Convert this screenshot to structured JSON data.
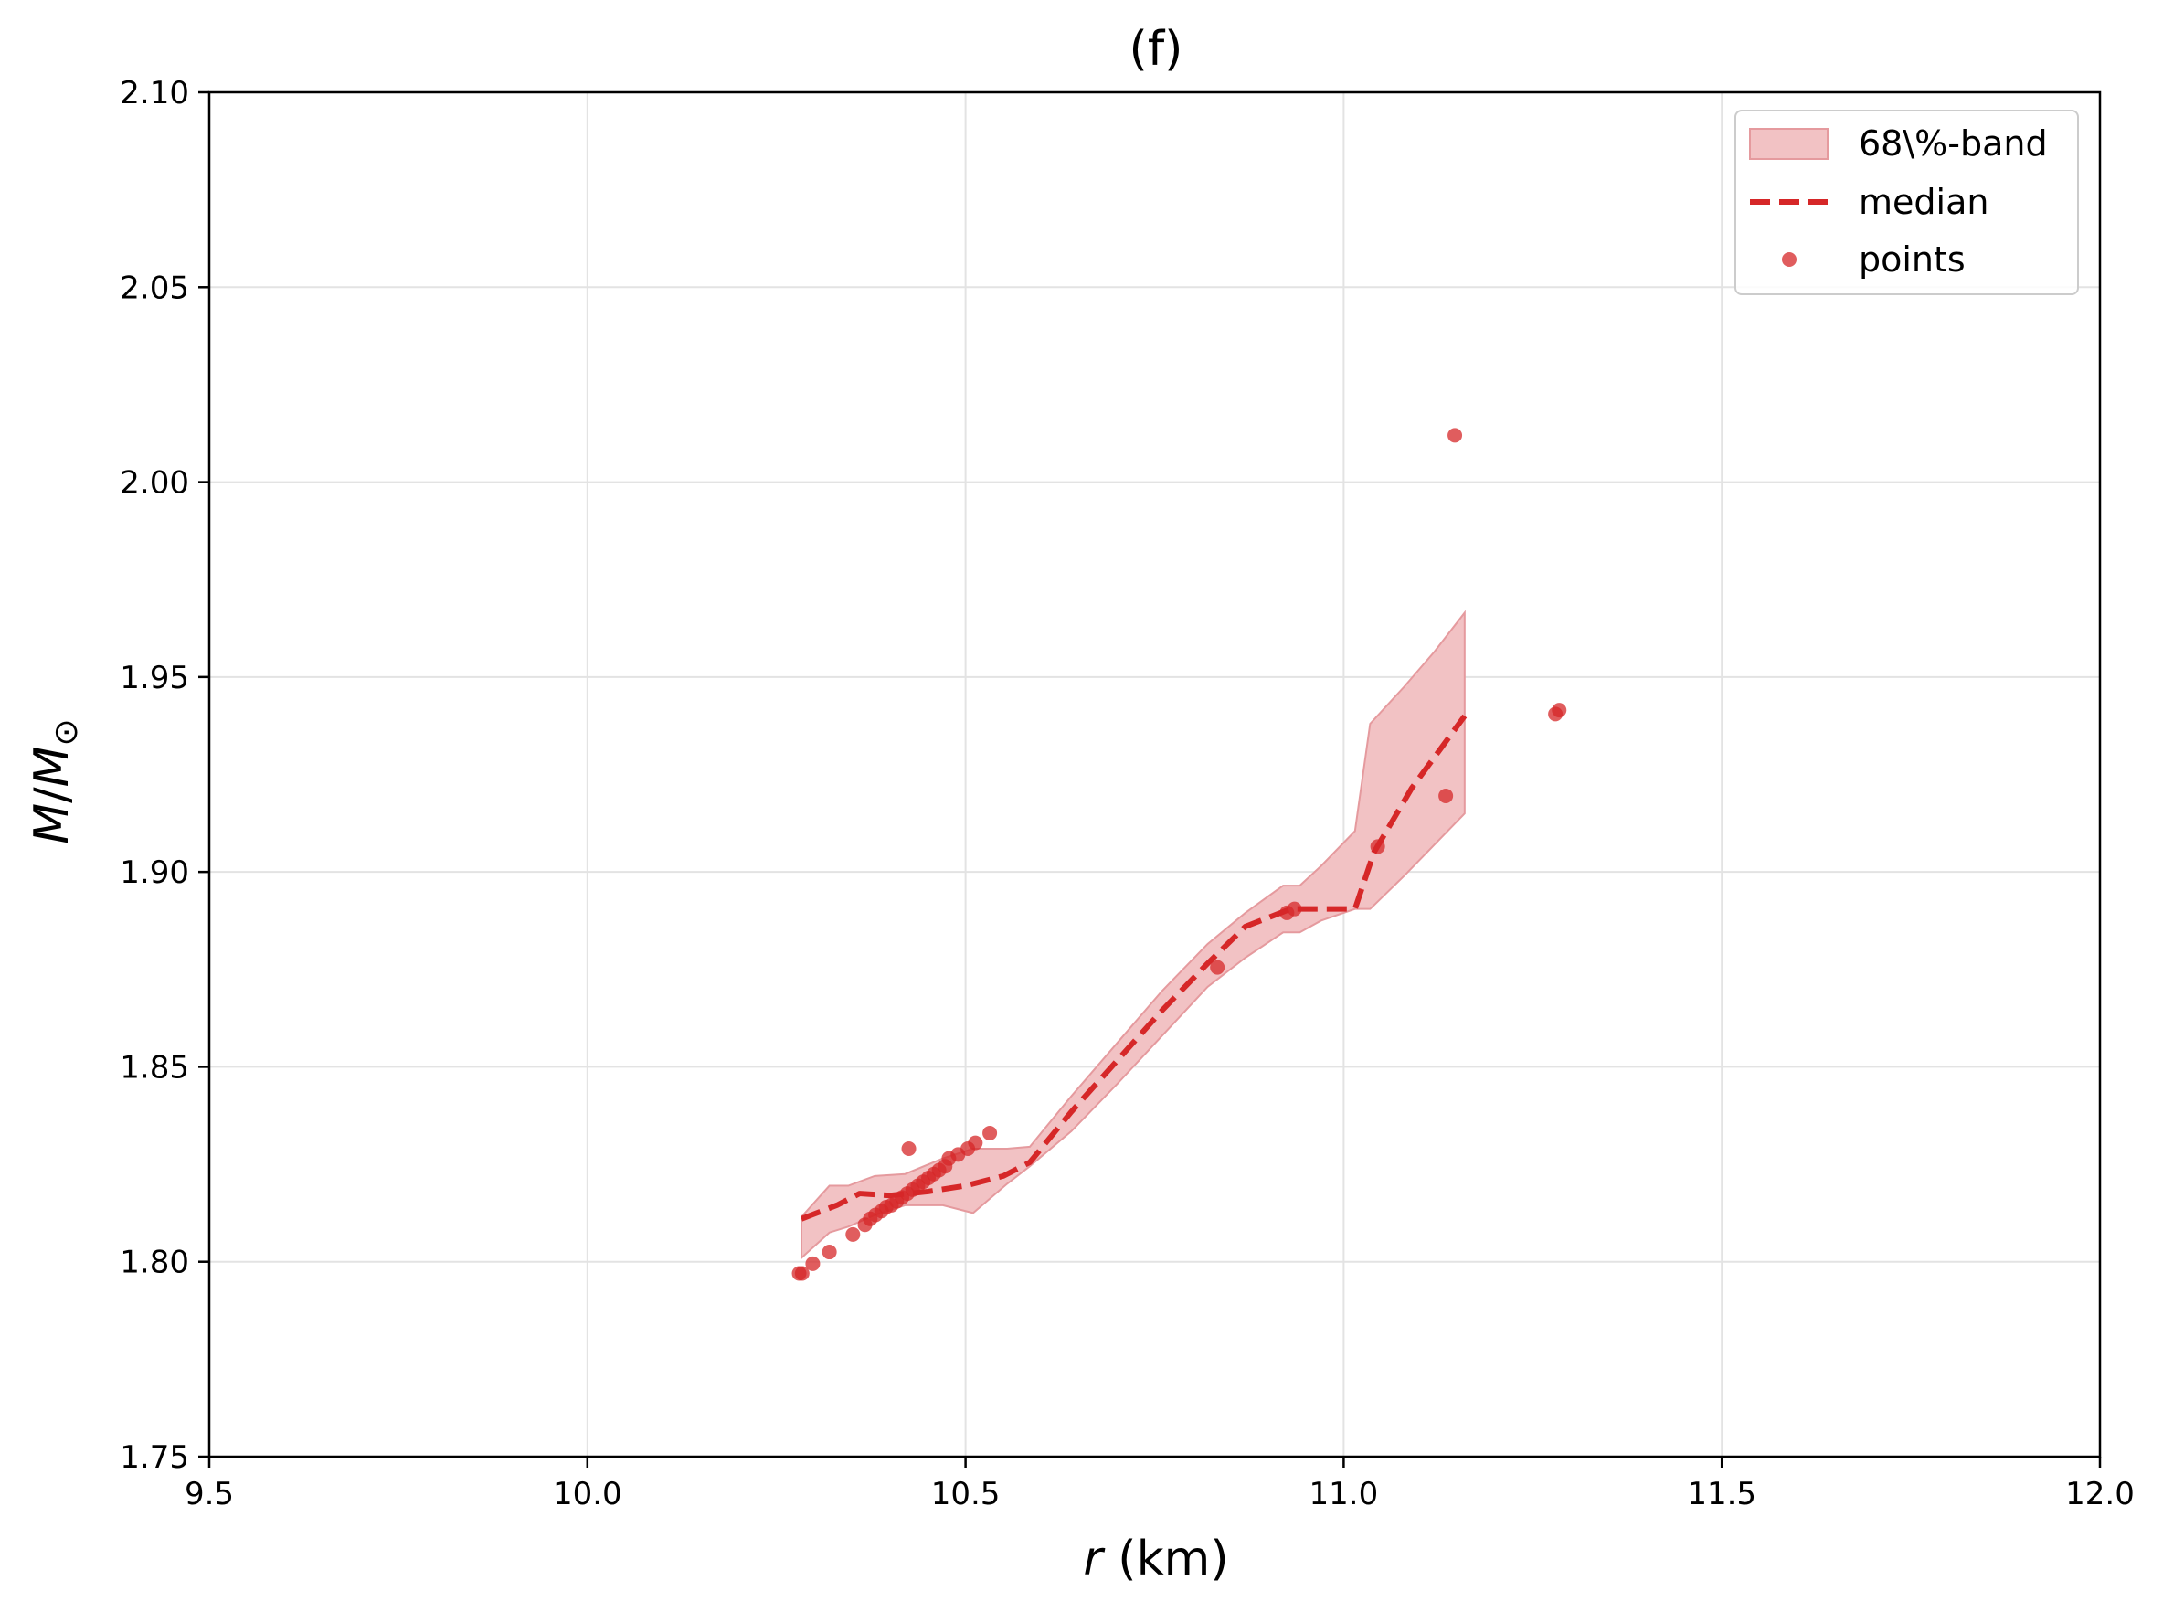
{
  "chart_data": {
    "type": "line",
    "title": "(f)",
    "xlabel": {
      "var": "r",
      "rest": " (km)"
    },
    "ylabel": {
      "var1": "M",
      "sep": "/",
      "var2": "M",
      "sub": "⊙"
    },
    "xlim": [
      9.5,
      12.0
    ],
    "ylim": [
      1.75,
      2.1
    ],
    "xticks": [
      9.5,
      10.0,
      10.5,
      11.0,
      11.5,
      12.0
    ],
    "xtick_labels": [
      "9.5",
      "10.0",
      "10.5",
      "11.0",
      "11.5",
      "12.0"
    ],
    "yticks": [
      1.75,
      1.8,
      1.85,
      1.9,
      1.95,
      2.0,
      2.05,
      2.1
    ],
    "ytick_labels": [
      "1.75",
      "1.80",
      "1.85",
      "1.90",
      "1.95",
      "2.00",
      "2.05",
      "2.10"
    ],
    "grid": true,
    "legend_position": "top-right",
    "colors": {
      "band_fill": "#f2c2c4",
      "band_edge": "#e59a9e",
      "median": "#d62728",
      "points": "#d62728"
    },
    "band": {
      "name": "68\\%-band",
      "x": [
        10.283,
        10.32,
        10.345,
        10.38,
        10.42,
        10.47,
        10.51,
        10.555,
        10.585,
        10.64,
        10.7,
        10.76,
        10.82,
        10.87,
        10.92,
        10.942,
        10.97,
        11.015,
        11.035,
        11.08,
        11.12,
        11.16
      ],
      "upper": [
        1.8115,
        1.8195,
        1.8195,
        1.822,
        1.8225,
        1.8265,
        1.829,
        1.829,
        1.8295,
        1.8425,
        1.856,
        1.8695,
        1.8815,
        1.8895,
        1.8965,
        1.8965,
        1.9015,
        1.9105,
        1.938,
        1.9475,
        1.9565,
        1.9665
      ],
      "lower": [
        1.801,
        1.8075,
        1.809,
        1.812,
        1.8145,
        1.8145,
        1.8125,
        1.82,
        1.8245,
        1.8335,
        1.8455,
        1.858,
        1.8705,
        1.878,
        1.8845,
        1.8845,
        1.8875,
        1.8905,
        1.8905,
        1.899,
        1.907,
        1.915
      ]
    },
    "median": {
      "name": "median",
      "x": [
        10.283,
        10.33,
        10.36,
        10.4,
        10.45,
        10.5,
        10.55,
        10.585,
        10.64,
        10.7,
        10.76,
        10.82,
        10.87,
        10.93,
        10.96,
        11.015,
        11.04,
        11.09,
        11.16
      ],
      "y": [
        1.811,
        1.8145,
        1.8175,
        1.817,
        1.818,
        1.8195,
        1.822,
        1.8255,
        1.8385,
        1.8515,
        1.8645,
        1.8765,
        1.886,
        1.8905,
        1.8905,
        1.8905,
        1.905,
        1.9215,
        1.94
      ]
    },
    "points": {
      "name": "points",
      "x": [
        10.28,
        10.284,
        10.298,
        10.32,
        10.351,
        10.367,
        10.374,
        10.381,
        10.389,
        10.395,
        10.402,
        10.409,
        10.416,
        10.423,
        10.43,
        10.437,
        10.444,
        10.451,
        10.458,
        10.465,
        10.473,
        10.478,
        10.425,
        10.49,
        10.503,
        10.513,
        10.532,
        10.833,
        10.925,
        10.935,
        11.045,
        11.135,
        11.147,
        11.28,
        11.285
      ],
      "y": [
        1.797,
        1.797,
        1.7995,
        1.8025,
        1.807,
        1.8095,
        1.811,
        1.812,
        1.813,
        1.814,
        1.8145,
        1.8155,
        1.8165,
        1.8175,
        1.8185,
        1.8195,
        1.8205,
        1.8215,
        1.8225,
        1.8235,
        1.8245,
        1.8265,
        1.829,
        1.8275,
        1.829,
        1.8305,
        1.833,
        1.8755,
        1.8895,
        1.8905,
        1.9065,
        1.9195,
        2.012,
        1.9405,
        1.9415
      ]
    }
  }
}
